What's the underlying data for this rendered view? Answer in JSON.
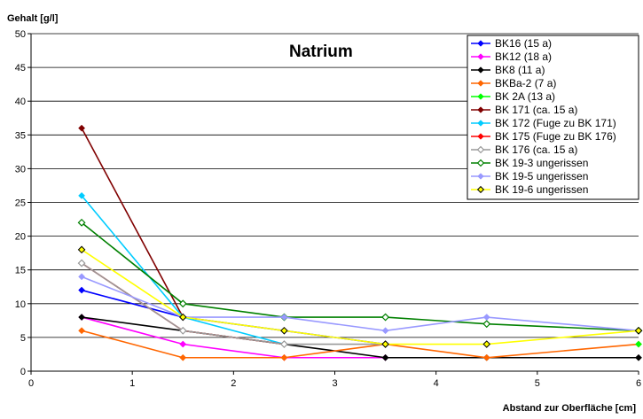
{
  "chart_data": {
    "type": "line",
    "title": "Natrium",
    "ylabel": "Gehalt [g/l]",
    "xlabel": "Abstand zur Oberfläche [cm]",
    "xlim": [
      0,
      6
    ],
    "ylim": [
      0,
      50
    ],
    "xticks": [
      0,
      1,
      2,
      3,
      4,
      5,
      6
    ],
    "yticks": [
      0,
      5,
      10,
      15,
      20,
      25,
      30,
      35,
      40,
      45,
      50
    ],
    "grid": "horizontal",
    "legend": "top-right",
    "series": [
      {
        "name": "BK16 (15 a)",
        "color": "#0000ff",
        "marker": "diamond-filled",
        "x": [
          0.5,
          1.5,
          2.5,
          3.5
        ],
        "y": [
          12,
          8,
          6,
          4
        ]
      },
      {
        "name": "BK12 (18 a)",
        "color": "#ff00ff",
        "marker": "diamond-filled",
        "x": [
          0.5,
          1.5,
          2.5,
          3.5
        ],
        "y": [
          8,
          4,
          2,
          2
        ]
      },
      {
        "name": "BK8 (11 a)",
        "color": "#000000",
        "marker": "diamond-filled",
        "x": [
          0.5,
          1.5,
          2.5,
          3.5,
          4.5,
          6
        ],
        "y": [
          8,
          6,
          4,
          2,
          2,
          2
        ]
      },
      {
        "name": "BKBa-2 (7 a)",
        "color": "#ff6600",
        "marker": "diamond-filled",
        "x": [
          0.5,
          1.5,
          2.5,
          3.5,
          4.5,
          6
        ],
        "y": [
          6,
          2,
          2,
          4,
          2,
          4
        ]
      },
      {
        "name": "BK 2A (13 a)",
        "color": "#00ff00",
        "marker": "diamond-filled",
        "x": [
          6
        ],
        "y": [
          4
        ]
      },
      {
        "name": "BK 171 (ca. 15 a)",
        "color": "#800000",
        "marker": "diamond-filled",
        "x": [
          0.5,
          1.5
        ],
        "y": [
          36,
          8
        ]
      },
      {
        "name": "BK 172 (Fuge zu BK 171)",
        "color": "#00ccff",
        "marker": "diamond-filled",
        "x": [
          0.5,
          1.5,
          2.5
        ],
        "y": [
          26,
          8,
          4
        ]
      },
      {
        "name": "BK 175 (Fuge zu BK 176)",
        "color": "#ff0000",
        "marker": "diamond-filled",
        "x": [
          0.5,
          1.5,
          2.5
        ],
        "y": [
          16,
          6,
          4
        ]
      },
      {
        "name": "BK 176 (ca. 15 a)",
        "color": "#999999",
        "marker": "diamond-open",
        "x": [
          0.5,
          1.5,
          2.5,
          3.5
        ],
        "y": [
          16,
          6,
          4,
          4
        ]
      },
      {
        "name": "BK 19-3 ungerissen",
        "color": "#008000",
        "marker": "diamond-open",
        "x": [
          0.5,
          1.5,
          2.5,
          3.5,
          4.5,
          6
        ],
        "y": [
          22,
          10,
          8,
          8,
          7,
          6
        ]
      },
      {
        "name": "BK 19-5 ungerissen",
        "color": "#9999ff",
        "marker": "diamond-filled",
        "x": [
          0.5,
          1.5,
          2.5,
          3.5,
          4.5,
          6
        ],
        "y": [
          14,
          8,
          8,
          6,
          8,
          6
        ]
      },
      {
        "name": "BK 19-6 ungerissen",
        "color": "#ffff00",
        "marker": "diamond-open-yellow",
        "x": [
          0.5,
          1.5,
          2.5,
          3.5,
          4.5,
          6
        ],
        "y": [
          18,
          8,
          6,
          4,
          4,
          6
        ]
      }
    ]
  }
}
